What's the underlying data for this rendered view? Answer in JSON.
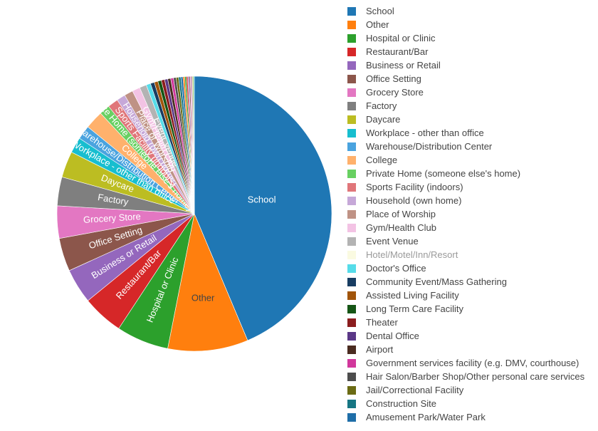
{
  "chart_data": {
    "type": "pie",
    "title": "",
    "legend_position": "right",
    "slices": [
      {
        "label": "School",
        "value": 42.5,
        "color": "#1f77b4",
        "show_label": true
      },
      {
        "label": "Other",
        "value": 9.2,
        "color": "#ff7f0e",
        "show_label": true
      },
      {
        "label": "Hospital or Clinic",
        "value": 6.0,
        "color": "#2ca02c",
        "show_label": true
      },
      {
        "label": "Restaurant/Bar",
        "value": 4.7,
        "color": "#d62728",
        "show_label": true
      },
      {
        "label": "Business or Retail",
        "value": 4.0,
        "color": "#9467bd",
        "show_label": true
      },
      {
        "label": "Office Setting",
        "value": 3.8,
        "color": "#8c564b",
        "show_label": true
      },
      {
        "label": "Grocery Store",
        "value": 3.7,
        "color": "#e377c2",
        "show_label": true
      },
      {
        "label": "Factory",
        "value": 3.3,
        "color": "#7f7f7f",
        "show_label": true
      },
      {
        "label": "Daycare",
        "value": 3.0,
        "color": "#bcbd22",
        "show_label": true
      },
      {
        "label": "Workplace - other than office",
        "value": 1.8,
        "color": "#17becf",
        "show_label": true
      },
      {
        "label": "Warehouse/Distribution Center",
        "value": 1.6,
        "color": "#4aa3df",
        "show_label": true
      },
      {
        "label": "College",
        "value": 2.1,
        "color": "#ffb16c",
        "show_label": true
      },
      {
        "label": "Private Home (someone else's home)",
        "value": 1.2,
        "color": "#68d062",
        "show_label": true
      },
      {
        "label": "Sports Facility (indoors)",
        "value": 1.2,
        "color": "#e0767a",
        "show_label": true
      },
      {
        "label": "Household (own home)",
        "value": 1.0,
        "color": "#c6a8d8",
        "show_label": true
      },
      {
        "label": "Place of Worship",
        "value": 1.0,
        "color": "#bf9285",
        "show_label": true
      },
      {
        "label": "Gym/Health Club",
        "value": 0.9,
        "color": "#f3c3e4",
        "show_label": true
      },
      {
        "label": "Event Venue",
        "value": 0.8,
        "color": "#b3b3b3",
        "show_label": true
      },
      {
        "label": "Hotel/Motel/Inn/Resort",
        "value": 0,
        "color": "#f2f2b5",
        "show_label": false,
        "hidden": true
      },
      {
        "label": "Doctor's Office",
        "value": 0.5,
        "color": "#56dce9",
        "show_label": false
      },
      {
        "label": "Community Event/Mass Gathering",
        "value": 0.45,
        "color": "#183d62",
        "show_label": false
      },
      {
        "label": "Assisted Living Facility",
        "value": 0.42,
        "color": "#a1540a",
        "show_label": false
      },
      {
        "label": "Long Term Care Facility",
        "value": 0.4,
        "color": "#155515",
        "show_label": false
      },
      {
        "label": "Theater",
        "value": 0.38,
        "color": "#8b1d1e",
        "show_label": false
      },
      {
        "label": "Dental Office",
        "value": 0.36,
        "color": "#5b3887",
        "show_label": false
      },
      {
        "label": "Airport",
        "value": 0.34,
        "color": "#4a2b20",
        "show_label": false
      },
      {
        "label": "Government services facility (e.g. DMV, courthouse)",
        "value": 0.32,
        "color": "#d1379c",
        "show_label": false
      },
      {
        "label": "Hair Salon/Barber Shop/Other personal care services",
        "value": 0.3,
        "color": "#4d4d4d",
        "show_label": false
      },
      {
        "label": "Jail/Correctional Facility",
        "value": 0.28,
        "color": "#6b6b14",
        "show_label": false
      },
      {
        "label": "Construction Site",
        "value": 0.26,
        "color": "#167683",
        "show_label": false
      },
      {
        "label": "Amusement Park/Water Park",
        "value": 0.24,
        "color": "#1f6ea8",
        "show_label": false
      },
      {
        "label": "",
        "value": 0.2,
        "color": "#ff7f0e",
        "show_label": false
      },
      {
        "label": "",
        "value": 0.18,
        "color": "#2ca02c",
        "show_label": false
      },
      {
        "label": "",
        "value": 0.16,
        "color": "#d62728",
        "show_label": false
      },
      {
        "label": "",
        "value": 0.15,
        "color": "#9467bd",
        "show_label": false
      },
      {
        "label": "",
        "value": 0.14,
        "color": "#8c564b",
        "show_label": false
      },
      {
        "label": "",
        "value": 0.13,
        "color": "#e377c2",
        "show_label": false
      },
      {
        "label": "",
        "value": 0.12,
        "color": "#7f7f7f",
        "show_label": false
      },
      {
        "label": "",
        "value": 0.11,
        "color": "#bcbd22",
        "show_label": false
      },
      {
        "label": "",
        "value": 0.1,
        "color": "#17becf",
        "show_label": false
      }
    ]
  }
}
